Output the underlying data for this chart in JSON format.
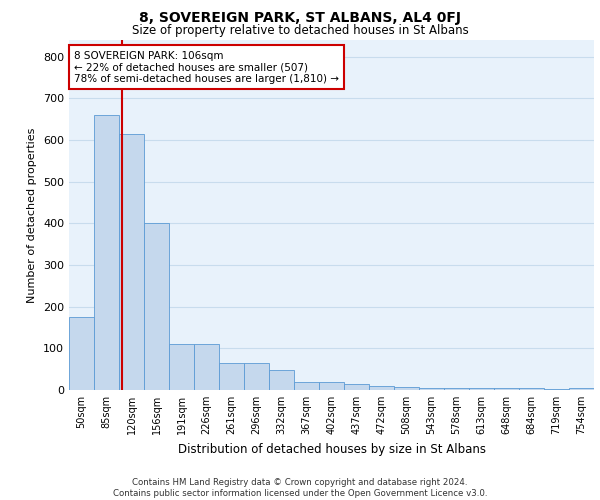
{
  "title": "8, SOVEREIGN PARK, ST ALBANS, AL4 0FJ",
  "subtitle": "Size of property relative to detached houses in St Albans",
  "xlabel": "Distribution of detached houses by size in St Albans",
  "ylabel": "Number of detached properties",
  "bar_labels": [
    "50sqm",
    "85sqm",
    "120sqm",
    "156sqm",
    "191sqm",
    "226sqm",
    "261sqm",
    "296sqm",
    "332sqm",
    "367sqm",
    "402sqm",
    "437sqm",
    "472sqm",
    "508sqm",
    "543sqm",
    "578sqm",
    "613sqm",
    "648sqm",
    "684sqm",
    "719sqm",
    "754sqm"
  ],
  "bar_values": [
    175,
    660,
    615,
    400,
    110,
    110,
    65,
    65,
    48,
    20,
    20,
    15,
    10,
    8,
    5,
    5,
    5,
    5,
    5,
    2,
    5
  ],
  "bar_color": "#c5d8ed",
  "bar_edge_color": "#5b9bd5",
  "grid_color": "#c8dced",
  "background_color": "#e8f2fb",
  "vline_color": "#cc0000",
  "annotation_text": "8 SOVEREIGN PARK: 106sqm\n← 22% of detached houses are smaller (507)\n78% of semi-detached houses are larger (1,810) →",
  "annotation_box_color": "#ffffff",
  "annotation_box_edge": "#cc0000",
  "footer_text": "Contains HM Land Registry data © Crown copyright and database right 2024.\nContains public sector information licensed under the Open Government Licence v3.0.",
  "ylim": [
    0,
    840
  ],
  "yticks": [
    0,
    100,
    200,
    300,
    400,
    500,
    600,
    700,
    800
  ]
}
